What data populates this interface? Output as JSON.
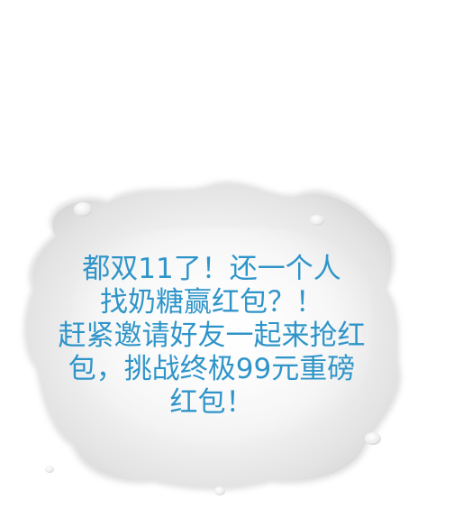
{
  "message": {
    "lines": [
      "都双11了！还一个人",
      "找奶糖赢红包？！",
      "赶紧邀请好友一起来抢红",
      "包，挑战终极99元重磅",
      "红包！"
    ],
    "text_color": "#2f95c9"
  },
  "background": {
    "splash_color": "#ebebeb",
    "page_color": "#ffffff"
  }
}
